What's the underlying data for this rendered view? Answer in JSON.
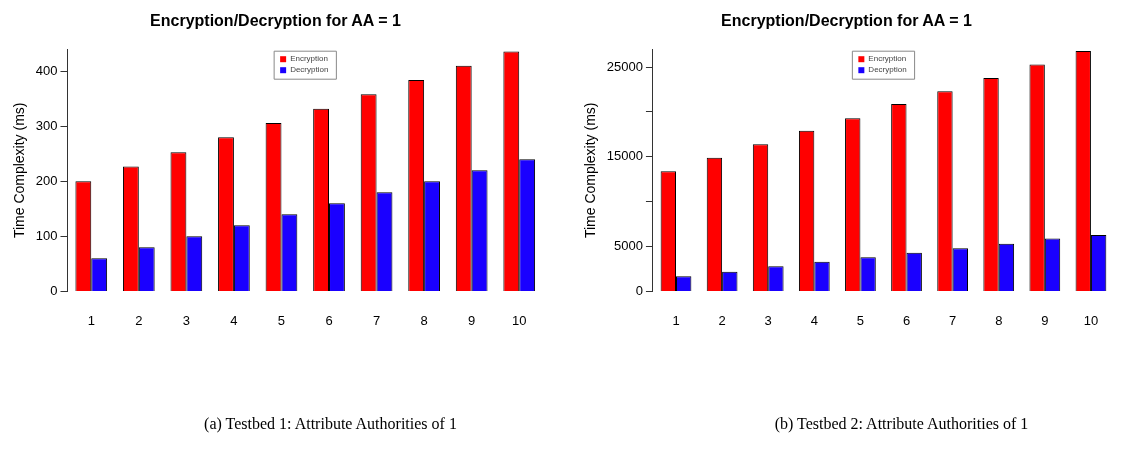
{
  "chart_data": [
    {
      "type": "bar",
      "title": "Encryption/Decryption for AA = 1",
      "ylabel": "Time Complexity (ms)",
      "categories": [
        "1",
        "2",
        "3",
        "4",
        "5",
        "6",
        "7",
        "8",
        "9",
        "10"
      ],
      "series": [
        {
          "name": "Encryption",
          "color": "#ff0000",
          "values": [
            200,
            227,
            253,
            280,
            306,
            332,
            358,
            384,
            410,
            436
          ]
        },
        {
          "name": "Decryption",
          "color": "#1a00ff",
          "values": [
            60,
            80,
            100,
            120,
            140,
            160,
            180,
            200,
            220,
            240
          ]
        }
      ],
      "ylim": [
        0,
        440
      ],
      "yticks": [
        0,
        100,
        200,
        300,
        400
      ],
      "legend": "top",
      "annotations": [
        "(a) Testbed 1: Attribute Authorities of 1"
      ]
    },
    {
      "type": "bar",
      "title": "Encryption/Decryption for AA = 1",
      "ylabel": "Time Complexity (ms)",
      "categories": [
        "1",
        "2",
        "3",
        "4",
        "5",
        "6",
        "7",
        "8",
        "9",
        "10"
      ],
      "series": [
        {
          "name": "Encryption",
          "color": "#ff0000",
          "values": [
            13400,
            14900,
            16400,
            17900,
            19300,
            20900,
            22300,
            23800,
            25300,
            26800
          ]
        },
        {
          "name": "Decryption",
          "color": "#1a00ff",
          "values": [
            1700,
            2200,
            2800,
            3300,
            3800,
            4300,
            4800,
            5300,
            5900,
            6300
          ]
        }
      ],
      "ylim": [
        0,
        27000
      ],
      "yticks": [
        0,
        5000,
        {
          "value": 10000,
          "label": null
        },
        15000,
        {
          "value": 20000,
          "label": null
        },
        25000
      ],
      "legend": "top",
      "annotations": [
        "(b) Testbed 2: Attribute Authorities of 1"
      ]
    }
  ]
}
